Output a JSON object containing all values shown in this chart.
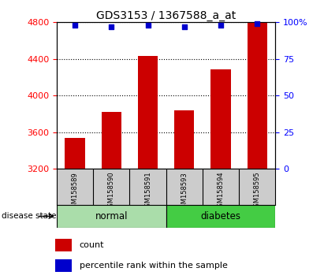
{
  "title": "GDS3153 / 1367588_a_at",
  "samples": [
    "GSM158589",
    "GSM158590",
    "GSM158591",
    "GSM158593",
    "GSM158594",
    "GSM158595"
  ],
  "counts": [
    3540,
    3820,
    4430,
    3840,
    4290,
    4790
  ],
  "percentile_ranks": [
    98,
    97,
    98,
    97,
    98,
    99
  ],
  "ylim_left": [
    3200,
    4800
  ],
  "ylim_right": [
    0,
    100
  ],
  "yticks_left": [
    3200,
    3600,
    4000,
    4400,
    4800
  ],
  "yticks_right": [
    0,
    25,
    50,
    75,
    100
  ],
  "ytick_right_labels": [
    "0",
    "25",
    "50",
    "75",
    "100%"
  ],
  "bar_color": "#cc0000",
  "dot_color": "#0000cc",
  "group_normal_color": "#aaddaa",
  "group_diabetes_color": "#44cc44",
  "group_label_prefix": "disease state",
  "legend_items": [
    {
      "color": "#cc0000",
      "label": "count"
    },
    {
      "color": "#0000cc",
      "label": "percentile rank within the sample"
    }
  ]
}
